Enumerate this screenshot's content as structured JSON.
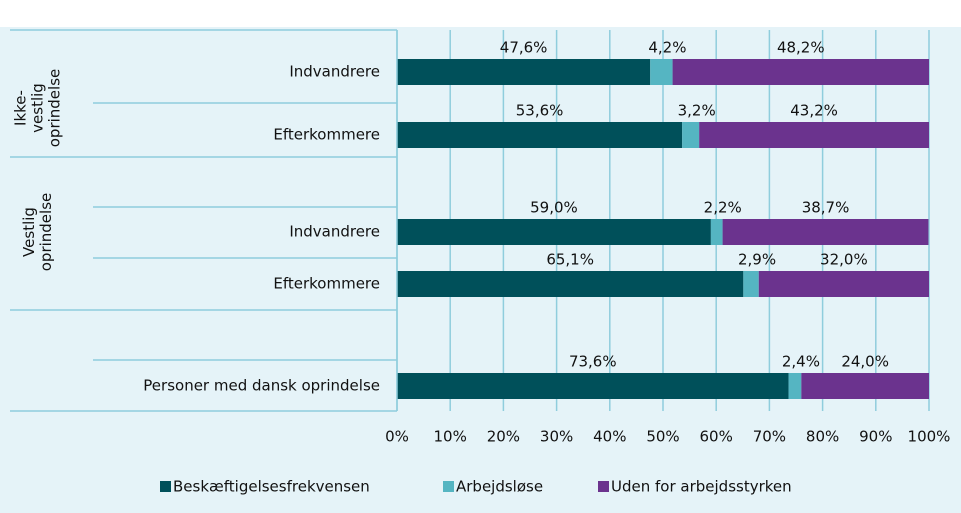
{
  "chart_data": {
    "type": "bar",
    "orientation": "horizontal",
    "stacked": true,
    "categories": [
      "Indvandrere",
      "Efterkommere",
      "Indvandrere",
      "Efterkommere",
      "Personer med dansk oprindelse"
    ],
    "groups": [
      [
        "Ikke-",
        "vestlig",
        "oprindelse"
      ],
      [
        "Vestlig",
        "oprindelse"
      ]
    ],
    "series": [
      {
        "name": "Beskæftigelsesfrekvensen",
        "color": "#00505a",
        "values": [
          47.6,
          53.6,
          59.0,
          65.1,
          73.6
        ],
        "value_labels": [
          "47,6%",
          "53,6%",
          "59,0%",
          "65,1%",
          "73,6%"
        ]
      },
      {
        "name": "Arbejdsløse",
        "color": "#55b5c2",
        "values": [
          4.2,
          3.2,
          2.2,
          2.9,
          2.4
        ],
        "value_labels": [
          "4,2%",
          "3,2%",
          "2,2%",
          "2,9%",
          "2,4%"
        ]
      },
      {
        "name": "Uden for arbejdsstyrken",
        "color": "#6b338e",
        "values": [
          48.2,
          43.2,
          38.7,
          32.0,
          24.0
        ],
        "value_labels": [
          "48,2%",
          "43,2%",
          "38,7%",
          "32,0%",
          "24,0%"
        ]
      }
    ],
    "xlim": [
      0,
      100
    ],
    "xticks": [
      {
        "value": 0,
        "label": "0%"
      },
      {
        "value": 10,
        "label": "10%"
      },
      {
        "value": 20,
        "label": "20%"
      },
      {
        "value": 30,
        "label": "30%"
      },
      {
        "value": 40,
        "label": "40%"
      },
      {
        "value": 50,
        "label": "50%"
      },
      {
        "value": 60,
        "label": "60%"
      },
      {
        "value": 70,
        "label": "70%"
      },
      {
        "value": 80,
        "label": "80%"
      },
      {
        "value": 90,
        "label": "90%"
      },
      {
        "value": 100,
        "label": "100%"
      }
    ],
    "grid": true,
    "legend": "bottom"
  }
}
